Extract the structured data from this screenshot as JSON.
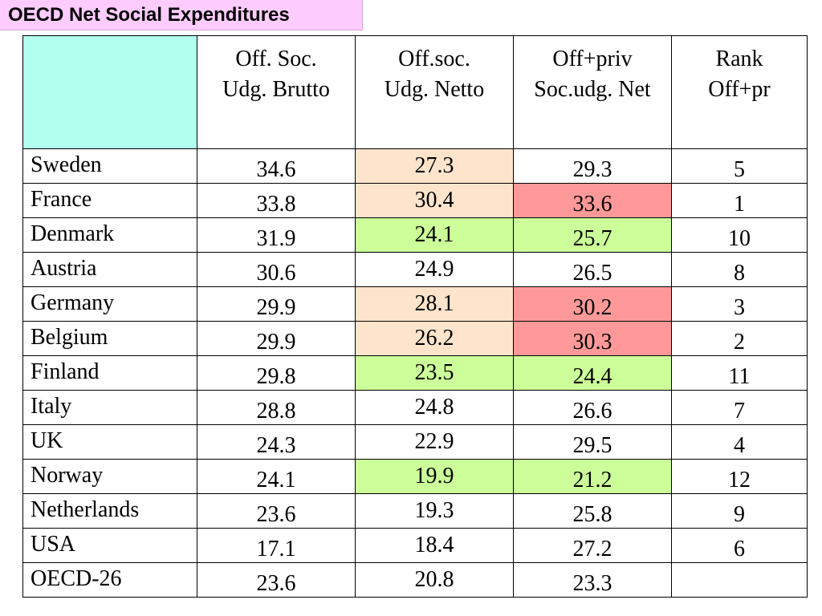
{
  "title": "OECD Net Social Expenditures",
  "colors": {
    "title_bg": "#ffccff",
    "corner_bg": "#b3ffee",
    "peach": "#ffe4cc",
    "green": "#ccff99",
    "red": "#ff9999",
    "none": "#ffffff"
  },
  "chart_data": {
    "type": "table",
    "title": "OECD Net Social Expenditures",
    "columns": [
      {
        "key": "corner",
        "label": ""
      },
      {
        "key": "v1",
        "label": "Off. Soc. Udg. Brutto"
      },
      {
        "key": "v2",
        "label": "Off.soc. Udg. Netto"
      },
      {
        "key": "v3",
        "label": "Off+priv Soc.udg. Net"
      },
      {
        "key": "v4",
        "label": "Rank Off+pr"
      }
    ],
    "header_lines": [
      [
        "Off. Soc.",
        "Udg. Brutto"
      ],
      [
        "Off.soc.",
        "Udg. Netto"
      ],
      [
        "Off+priv",
        "Soc.udg. Net"
      ],
      [
        "Rank",
        "Off+pr"
      ]
    ],
    "rows": [
      {
        "country": "Sweden",
        "v1": "34.6",
        "v2": "27.3",
        "v3": "29.3",
        "v4": "5",
        "c2": "peach",
        "c3": "none"
      },
      {
        "country": "France",
        "v1": "33.8",
        "v2": "30.4",
        "v3": "33.6",
        "v4": "1",
        "c2": "peach",
        "c3": "red"
      },
      {
        "country": "Denmark",
        "v1": "31.9",
        "v2": "24.1",
        "v3": "25.7",
        "v4": "10",
        "c2": "green",
        "c3": "green"
      },
      {
        "country": "Austria",
        "v1": "30.6",
        "v2": "24.9",
        "v3": "26.5",
        "v4": "8",
        "c2": "none",
        "c3": "none"
      },
      {
        "country": "Germany",
        "v1": "29.9",
        "v2": "28.1",
        "v3": "30.2",
        "v4": "3",
        "c2": "peach",
        "c3": "red"
      },
      {
        "country": "Belgium",
        "v1": "29.9",
        "v2": "26.2",
        "v3": "30.3",
        "v4": "2",
        "c2": "peach",
        "c3": "red"
      },
      {
        "country": "Finland",
        "v1": "29.8",
        "v2": "23.5",
        "v3": "24.4",
        "v4": "11",
        "c2": "green",
        "c3": "green"
      },
      {
        "country": "Italy",
        "v1": "28.8",
        "v2": "24.8",
        "v3": "26.6",
        "v4": "7",
        "c2": "none",
        "c3": "none"
      },
      {
        "country": "UK",
        "v1": "24.3",
        "v2": "22.9",
        "v3": "29.5",
        "v4": "4",
        "c2": "none",
        "c3": "none"
      },
      {
        "country": "Norway",
        "v1": "24.1",
        "v2": "19.9",
        "v3": "21.2",
        "v4": "12",
        "c2": "green",
        "c3": "green"
      },
      {
        "country": "Netherlands",
        "v1": "23.6",
        "v2": "19.3",
        "v3": "25.8",
        "v4": "9",
        "c2": "none",
        "c3": "none"
      },
      {
        "country": "USA",
        "v1": "17.1",
        "v2": "18.4",
        "v3": "27.2",
        "v4": "6",
        "c2": "none",
        "c3": "none"
      },
      {
        "country": "OECD-26",
        "v1": "23.6",
        "v2": "20.8",
        "v3": "23.3",
        "v4": "",
        "c2": "none",
        "c3": "none"
      }
    ]
  }
}
